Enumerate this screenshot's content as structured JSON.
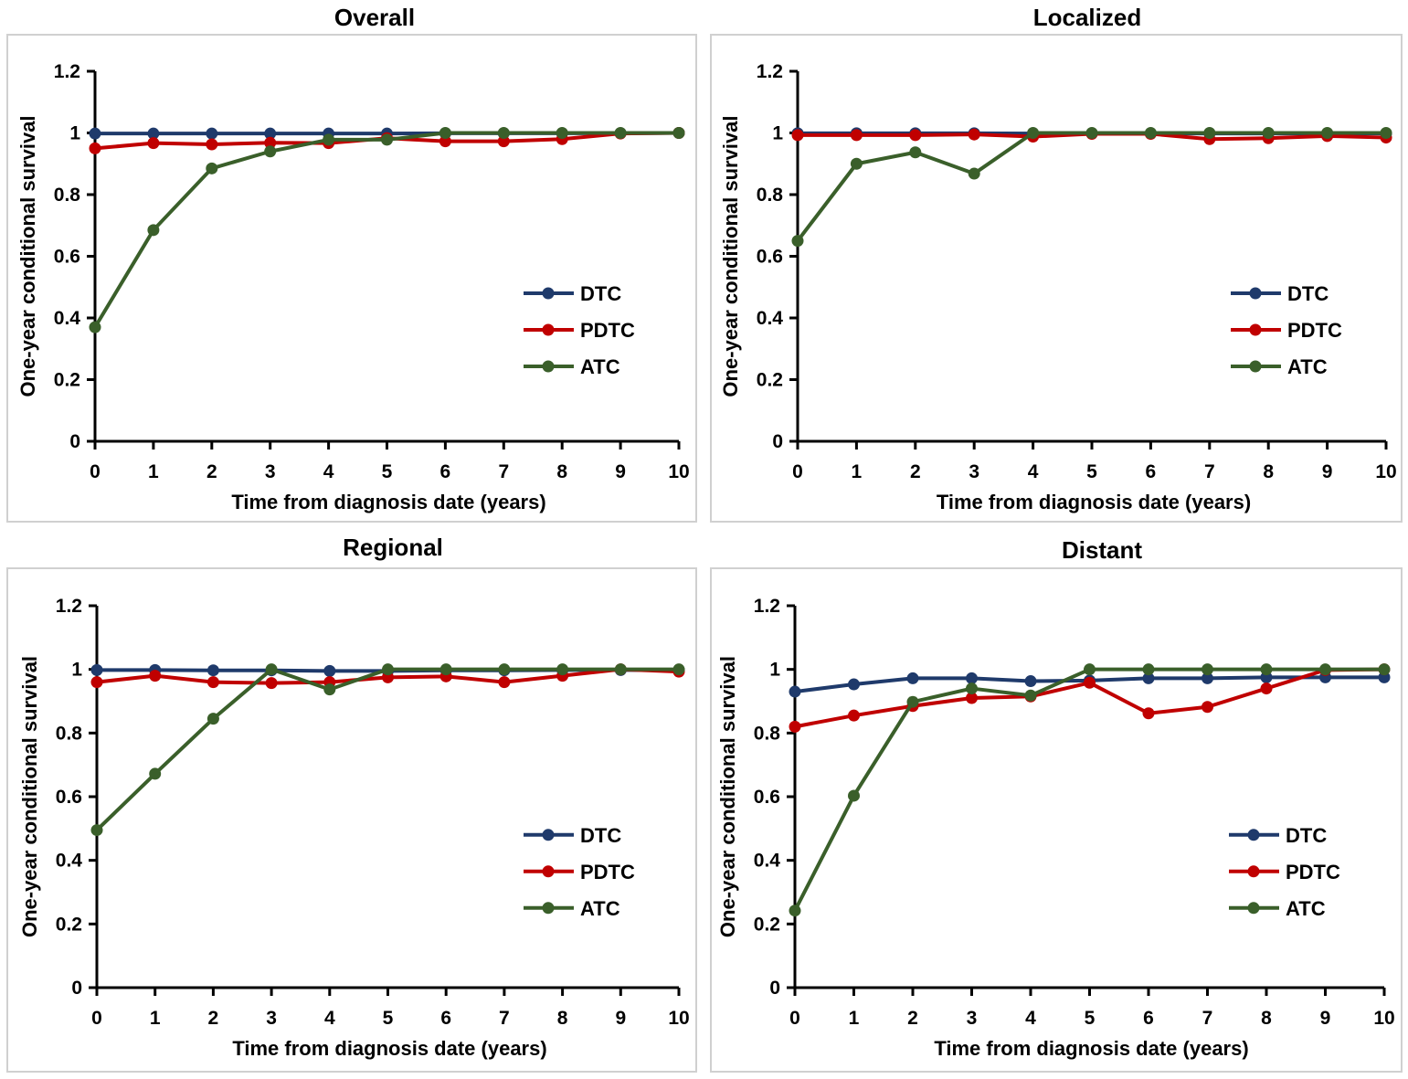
{
  "colors": {
    "DTC": "#1f3a6b",
    "PDTC": "#c00000",
    "ATC": "#3a5f2a"
  },
  "chart_data": [
    {
      "type": "line",
      "title": "Overall",
      "xlabel": "Time from diagnosis date (years)",
      "ylabel": "One-year conditional survival",
      "x": [
        0,
        1,
        2,
        3,
        4,
        5,
        6,
        7,
        8,
        9,
        10
      ],
      "xticks": [
        "0",
        "1",
        "2",
        "3",
        "4",
        "5",
        "6",
        "7",
        "8",
        "9",
        "10"
      ],
      "yticks": [
        "0",
        "0.2",
        "0.4",
        "0.6",
        "0.8",
        "1",
        "1.2"
      ],
      "ylim": [
        0,
        1.2
      ],
      "legend_position": "right-middle",
      "series": [
        {
          "name": "DTC",
          "values": [
            0.998,
            0.998,
            0.998,
            0.998,
            0.998,
            0.998,
            0.999,
            0.999,
            0.999,
            0.999,
            1.0
          ]
        },
        {
          "name": "PDTC",
          "values": [
            0.95,
            0.967,
            0.963,
            0.968,
            0.967,
            0.983,
            0.973,
            0.973,
            0.98,
            0.998,
            1.0
          ]
        },
        {
          "name": "ATC",
          "values": [
            0.37,
            0.685,
            0.885,
            0.94,
            0.978,
            0.978,
            1.0,
            1.0,
            1.0,
            1.0,
            1.0
          ]
        }
      ]
    },
    {
      "type": "line",
      "title": "Localized",
      "xlabel": "Time from diagnosis date (years)",
      "ylabel": "One-year conditional survival",
      "x": [
        0,
        1,
        2,
        3,
        4,
        5,
        6,
        7,
        8,
        9,
        10
      ],
      "xticks": [
        "0",
        "1",
        "2",
        "3",
        "4",
        "5",
        "6",
        "7",
        "8",
        "9",
        "10"
      ],
      "yticks": [
        "0",
        "0.2",
        "0.4",
        "0.6",
        "0.8",
        "1",
        "1.2"
      ],
      "ylim": [
        0,
        1.2
      ],
      "legend_position": "right-middle",
      "series": [
        {
          "name": "DTC",
          "values": [
            0.999,
            0.999,
            0.999,
            0.999,
            0.998,
            0.998,
            0.998,
            0.998,
            0.998,
            0.998,
            0.998
          ]
        },
        {
          "name": "PDTC",
          "values": [
            0.993,
            0.993,
            0.993,
            0.995,
            0.988,
            0.997,
            0.997,
            0.98,
            0.983,
            0.99,
            0.985
          ]
        },
        {
          "name": "ATC",
          "values": [
            0.65,
            0.9,
            0.937,
            0.868,
            1.0,
            1.0,
            1.0,
            1.0,
            1.0,
            1.0,
            1.0
          ]
        }
      ]
    },
    {
      "type": "line",
      "title": "Regional",
      "xlabel": "Time from diagnosis date (years)",
      "ylabel": "One-year conditional survival",
      "x": [
        0,
        1,
        2,
        3,
        4,
        5,
        6,
        7,
        8,
        9,
        10
      ],
      "xticks": [
        "0",
        "1",
        "2",
        "3",
        "4",
        "5",
        "6",
        "7",
        "8",
        "9",
        "10"
      ],
      "yticks": [
        "0",
        "0.2",
        "0.4",
        "0.6",
        "0.8",
        "1",
        "1.2"
      ],
      "ylim": [
        0,
        1.2
      ],
      "legend_position": "right-middle",
      "series": [
        {
          "name": "DTC",
          "values": [
            0.998,
            0.998,
            0.997,
            0.997,
            0.995,
            0.995,
            0.997,
            0.997,
            0.998,
            0.998,
            0.998
          ]
        },
        {
          "name": "PDTC",
          "values": [
            0.96,
            0.98,
            0.96,
            0.957,
            0.96,
            0.975,
            0.978,
            0.96,
            0.98,
            1.0,
            0.993
          ]
        },
        {
          "name": "ATC",
          "values": [
            0.495,
            0.672,
            0.845,
            1.0,
            0.937,
            1.0,
            1.0,
            1.0,
            1.0,
            1.0,
            1.0
          ]
        }
      ]
    },
    {
      "type": "line",
      "title": "Distant",
      "xlabel": "Time from diagnosis date (years)",
      "ylabel": "One-year conditional survival",
      "x": [
        0,
        1,
        2,
        3,
        4,
        5,
        6,
        7,
        8,
        9,
        10
      ],
      "xticks": [
        "0",
        "1",
        "2",
        "3",
        "4",
        "5",
        "6",
        "7",
        "8",
        "9",
        "10"
      ],
      "yticks": [
        "0",
        "0.2",
        "0.4",
        "0.6",
        "0.8",
        "1",
        "1.2"
      ],
      "ylim": [
        0,
        1.2
      ],
      "legend_position": "right-middle",
      "series": [
        {
          "name": "DTC",
          "values": [
            0.93,
            0.953,
            0.972,
            0.972,
            0.963,
            0.965,
            0.972,
            0.972,
            0.975,
            0.975,
            0.975
          ]
        },
        {
          "name": "PDTC",
          "values": [
            0.82,
            0.855,
            0.885,
            0.91,
            0.915,
            0.958,
            0.862,
            0.882,
            0.94,
            0.998,
            1.0
          ]
        },
        {
          "name": "ATC",
          "values": [
            0.242,
            0.603,
            0.898,
            0.94,
            0.918,
            1.0,
            1.0,
            1.0,
            1.0,
            1.0,
            1.0
          ]
        }
      ]
    }
  ]
}
